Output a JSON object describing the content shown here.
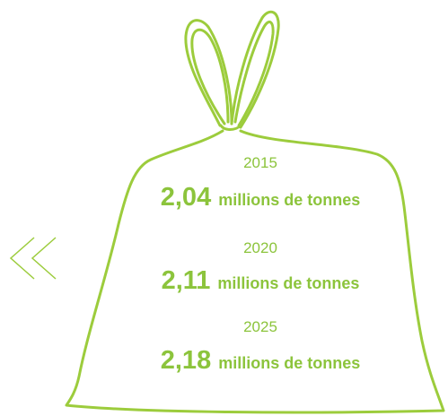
{
  "entries": [
    {
      "year": "2015",
      "value": "2,04",
      "unit": "millions de tonnes"
    },
    {
      "year": "2020",
      "value": "2,11",
      "unit": "millions de tonnes"
    },
    {
      "year": "2025",
      "value": "2,18",
      "unit": "millions de tonnes"
    }
  ]
}
